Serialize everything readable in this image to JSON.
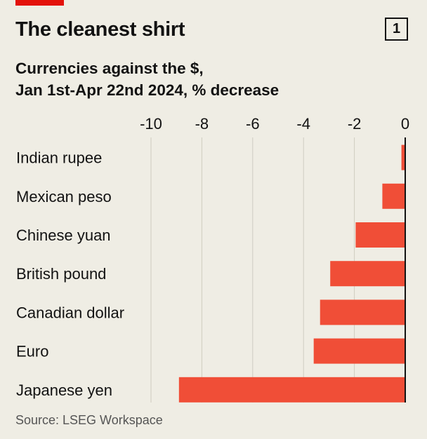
{
  "header": {
    "title": "The cleanest shirt",
    "chart_number": "1",
    "subtitle_line1": "Currencies against the $,",
    "subtitle_line2": "Jan 1st-Apr 22nd 2024, % decrease"
  },
  "footer": {
    "source": "Source: LSEG Workspace"
  },
  "colors": {
    "bar": "#f04e37",
    "accent": "#e3120b",
    "background": "#efede4",
    "grid": "#cfccc1",
    "zero_line": "#121212"
  },
  "chart_data": {
    "type": "bar",
    "orientation": "horizontal",
    "categories": [
      "Indian rupee",
      "Mexican peso",
      "Chinese yuan",
      "British pound",
      "Canadian dollar",
      "Euro",
      "Japanese yen"
    ],
    "values": [
      -0.15,
      -0.9,
      -1.95,
      -2.95,
      -3.35,
      -3.6,
      -8.9
    ],
    "xlim": [
      -10,
      0
    ],
    "ticks": [
      -10,
      -8,
      -6,
      -4,
      -2,
      0
    ],
    "tick_labels": [
      "-10",
      "-8",
      "-6",
      "-4",
      "-2",
      "0"
    ],
    "axis_position": "top",
    "grid": true
  }
}
